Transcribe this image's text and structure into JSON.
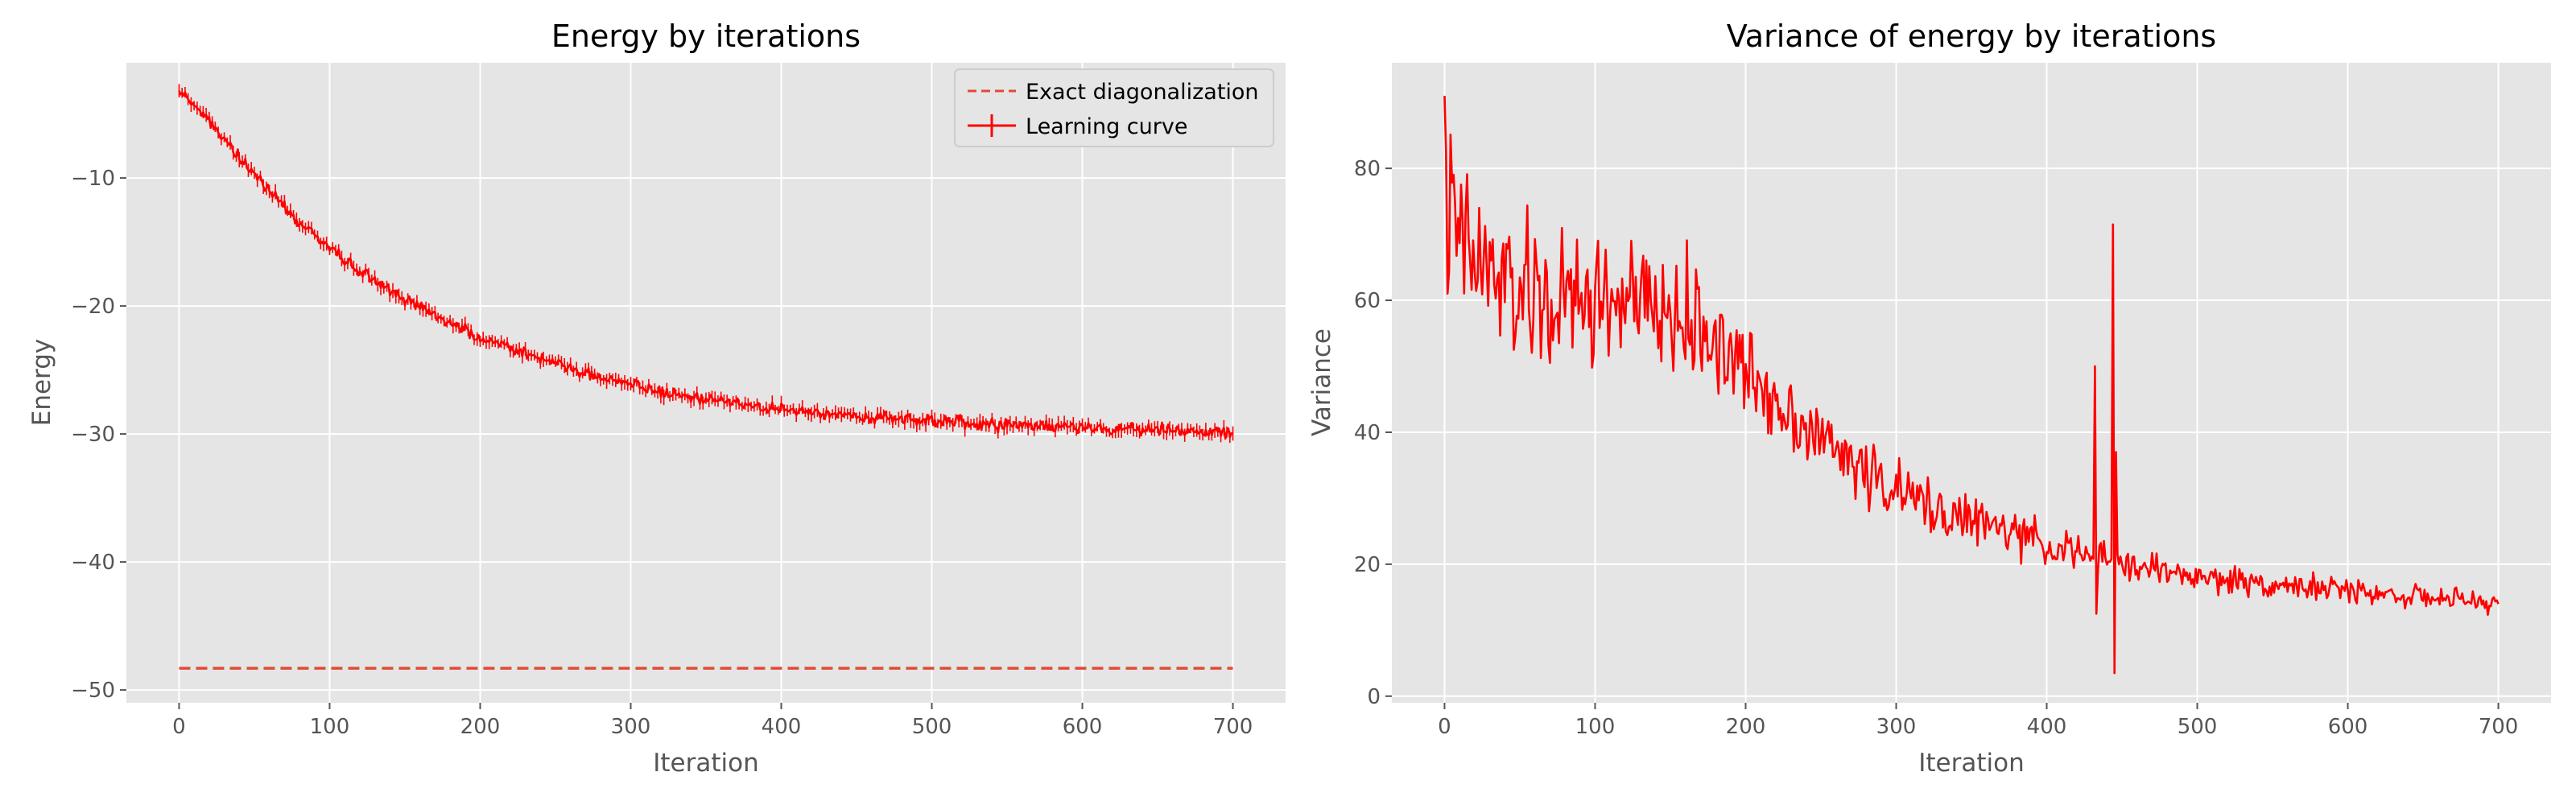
{
  "chart_data": [
    {
      "type": "line",
      "title": "Energy by iterations",
      "xlabel": "Iteration",
      "ylabel": "Energy",
      "xlim": [
        -35,
        735
      ],
      "ylim": [
        -51,
        -1
      ],
      "xticks": [
        0,
        100,
        200,
        300,
        400,
        500,
        600,
        700
      ],
      "yticks": [
        -50,
        -40,
        -30,
        -20,
        -10
      ],
      "ytick_labels": [
        "−50",
        "−40",
        "−30",
        "−20",
        "−10"
      ],
      "grid": true,
      "legend_position": "top-right",
      "colors": {
        "background": "#e5e5e5",
        "grid": "#ffffff",
        "line": "#ff0000",
        "dashed": "#e24a33"
      },
      "series": [
        {
          "name": "Exact diagonalization",
          "style": "dashed",
          "x": [
            0,
            700
          ],
          "y": [
            -48.3,
            -48.3
          ]
        },
        {
          "name": "Learning curve",
          "style": "solid-with-errorbars",
          "noise": 0.45,
          "x": [
            0,
            10,
            20,
            30,
            40,
            50,
            60,
            70,
            80,
            90,
            100,
            120,
            140,
            160,
            180,
            200,
            220,
            250,
            280,
            300,
            320,
            350,
            380,
            400,
            450,
            500,
            550,
            600,
            650,
            700
          ],
          "y": [
            -3.3,
            -4.2,
            -5.5,
            -7.0,
            -8.5,
            -9.8,
            -11.0,
            -12.3,
            -13.5,
            -14.5,
            -15.5,
            -17.3,
            -18.8,
            -20.0,
            -21.3,
            -22.5,
            -23.3,
            -24.5,
            -25.5,
            -26.1,
            -26.7,
            -27.3,
            -27.8,
            -28.1,
            -28.6,
            -29.0,
            -29.3,
            -29.5,
            -29.7,
            -29.9
          ]
        }
      ]
    },
    {
      "type": "line",
      "title": "Variance of energy by iterations",
      "xlabel": "Iteration",
      "ylabel": "Variance",
      "xlim": [
        -35,
        735
      ],
      "ylim": [
        -1,
        96
      ],
      "xticks": [
        0,
        100,
        200,
        300,
        400,
        500,
        600,
        700
      ],
      "yticks": [
        0,
        20,
        40,
        60,
        80
      ],
      "grid": true,
      "colors": {
        "background": "#e5e5e5",
        "grid": "#ffffff",
        "line": "#ff0000"
      },
      "series": [
        {
          "style": "solid",
          "x": [
            0,
            5,
            10,
            20,
            40,
            60,
            80,
            100,
            120,
            140,
            160,
            180,
            200,
            220,
            250,
            280,
            300,
            330,
            360,
            400,
            430,
            450,
            480,
            500,
            550,
            600,
            650,
            700
          ],
          "y": [
            73,
            71,
            69,
            66,
            62,
            60,
            59,
            60,
            60,
            58,
            57,
            54,
            49,
            45,
            39,
            34,
            31,
            28,
            26,
            23,
            21,
            20,
            19,
            18,
            17,
            16,
            15,
            14
          ],
          "noise": [
            14,
            14,
            13,
            12,
            11,
            11,
            11,
            11,
            10,
            9,
            9,
            8,
            7,
            6,
            5,
            5,
            4.5,
            4,
            3.5,
            3,
            2.8,
            2.5,
            2.3,
            2.2,
            2.0,
            1.8,
            1.6,
            1.5
          ],
          "spikes": [
            {
              "x": 0,
              "y": 91
            },
            {
              "x": 432,
              "y": 50
            },
            {
              "x": 433,
              "y": 12.5
            },
            {
              "x": 444,
              "y": 71.5
            },
            {
              "x": 445,
              "y": 3.5
            },
            {
              "x": 446,
              "y": 37
            }
          ]
        }
      ]
    }
  ]
}
